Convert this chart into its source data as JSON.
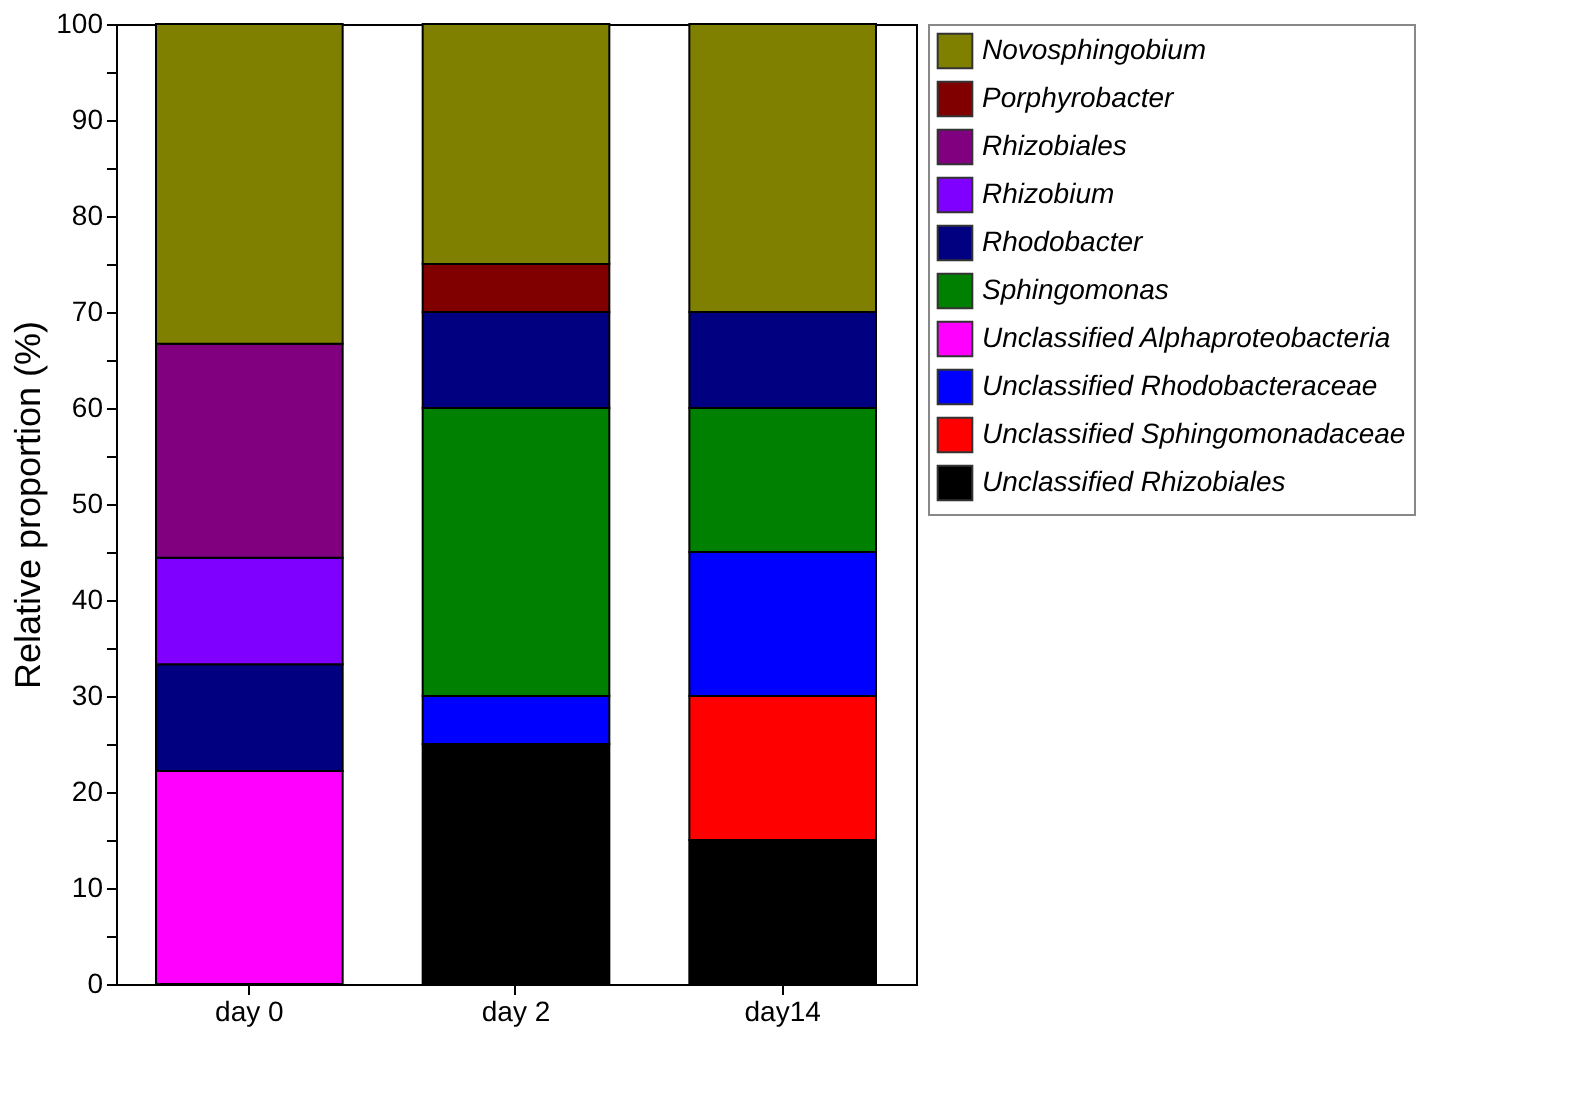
{
  "chart_data": {
    "type": "bar",
    "stacked": true,
    "ylabel": "Relative proportion (%)",
    "categories": [
      "day 0",
      "day 2",
      "day14"
    ],
    "series": [
      {
        "name": "Unclassified Rhizobiales",
        "color": "#000000",
        "values": [
          null,
          25,
          15
        ]
      },
      {
        "name": "Unclassified Sphingomonadaceae",
        "color": "#ff0000",
        "values": [
          null,
          null,
          15
        ]
      },
      {
        "name": "Unclassified Rhodobacteraceae",
        "color": "#0000ff",
        "values": [
          null,
          5,
          15
        ]
      },
      {
        "name": "Unclassified Alphaproteobacteria",
        "color": "#ff00ff",
        "values": [
          22.2,
          null,
          null
        ]
      },
      {
        "name": "Sphingomonas",
        "color": "#008000",
        "values": [
          null,
          30,
          15
        ]
      },
      {
        "name": "Rhodobacter",
        "color": "#000080",
        "values": [
          11.1,
          10,
          10
        ]
      },
      {
        "name": "Rhizobium",
        "color": "#8000ff",
        "values": [
          11.1,
          null,
          null
        ]
      },
      {
        "name": "Rhizobiales",
        "color": "#800080",
        "values": [
          22.3,
          null,
          null
        ]
      },
      {
        "name": "Porphyrobacter",
        "color": "#800000",
        "values": [
          null,
          5,
          null
        ]
      },
      {
        "name": "Novosphingobium",
        "color": "#808000",
        "values": [
          33.3,
          25,
          30
        ]
      }
    ],
    "ylim": [
      0,
      100
    ],
    "yticks": [
      0,
      {
        "value": 5,
        "label": null
      },
      10,
      {
        "value": 15,
        "label": null
      },
      20,
      {
        "value": 25,
        "label": null
      },
      30,
      {
        "value": 35,
        "label": null
      },
      40,
      {
        "value": 45,
        "label": null
      },
      50,
      {
        "value": 55,
        "label": null
      },
      60,
      {
        "value": 65,
        "label": null
      },
      70,
      {
        "value": 75,
        "label": null
      },
      80,
      {
        "value": 85,
        "label": null
      },
      90,
      {
        "value": 95,
        "label": null
      },
      100
    ],
    "grid": false,
    "legend": "top right"
  }
}
